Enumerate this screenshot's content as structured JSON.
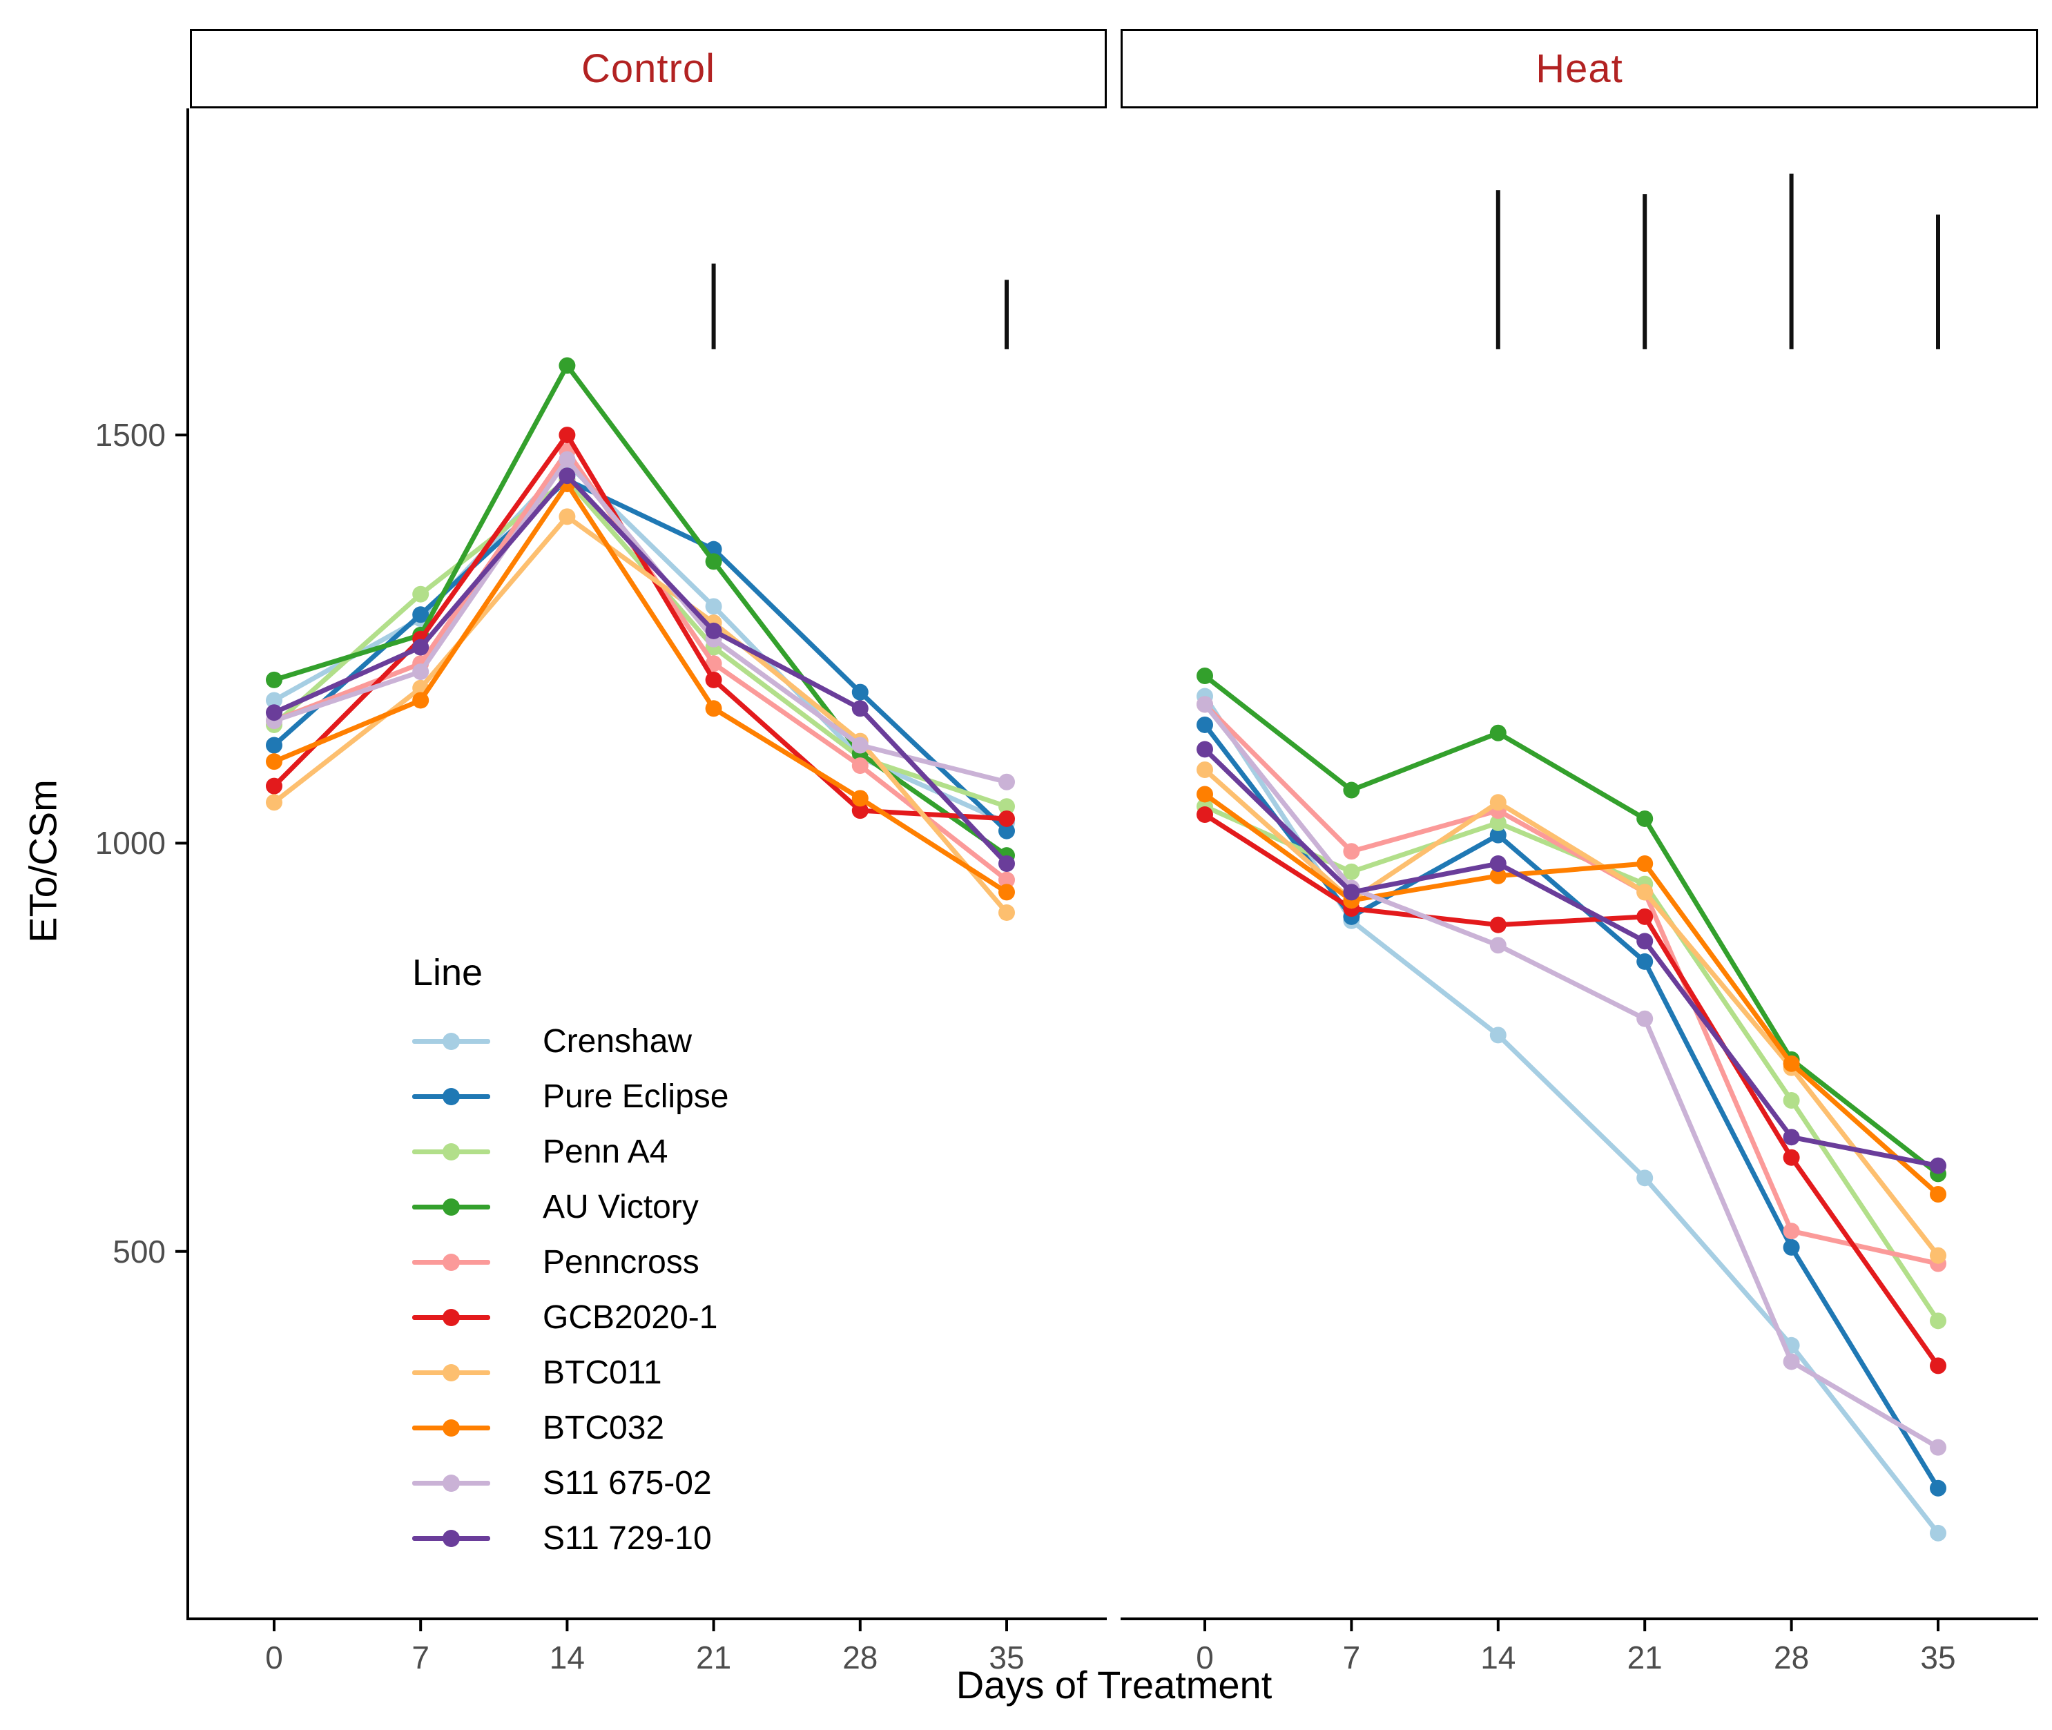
{
  "figure": {
    "facet_labels": [
      "Control",
      "Heat"
    ],
    "strip_text_color": "#B22222",
    "tick_label_color": "#4d4d4d",
    "axis_line_color": "#000000",
    "significance_bar_color": "#101010"
  },
  "legend": {
    "title": "Line"
  },
  "chart_data": {
    "type": "line",
    "title": "",
    "xlabel": "Days of Treatment",
    "ylabel": "ETo/CSm",
    "x": [
      0,
      7,
      14,
      21,
      28,
      35
    ],
    "xticks": [
      0,
      7,
      14,
      21,
      28,
      35
    ],
    "yticks": [
      500,
      1000,
      1500
    ],
    "ylim": [
      50,
      1900
    ],
    "grid": false,
    "legend_position": "inside lower-left of Control panel",
    "facets": [
      {
        "label": "Control",
        "series": [
          {
            "name": "Crenshaw",
            "color": "#A6CEE3",
            "values": [
              1175,
              1275,
              1465,
              1290,
              1105,
              1025
            ]
          },
          {
            "name": "Pure Eclipse",
            "color": "#1F78B4",
            "values": [
              1120,
              1280,
              1445,
              1360,
              1185,
              1015
            ]
          },
          {
            "name": "Penn A4",
            "color": "#B2DF8A",
            "values": [
              1145,
              1305,
              1445,
              1240,
              1105,
              1045
            ]
          },
          {
            "name": "AU Victory",
            "color": "#33A02C",
            "values": [
              1200,
              1255,
              1585,
              1345,
              1110,
              985
            ]
          },
          {
            "name": "Penncross",
            "color": "#FB9A99",
            "values": [
              1150,
              1220,
              1480,
              1220,
              1095,
              955
            ]
          },
          {
            "name": "GCB2020-1",
            "color": "#E31A1C",
            "values": [
              1070,
              1250,
              1500,
              1200,
              1040,
              1030
            ]
          },
          {
            "name": "BTC011",
            "color": "#FDBF6F",
            "values": [
              1050,
              1190,
              1400,
              1270,
              1125,
              915
            ]
          },
          {
            "name": "BTC032",
            "color": "#FF7F00",
            "values": [
              1100,
              1175,
              1440,
              1165,
              1055,
              940
            ]
          },
          {
            "name": "S11 675-02",
            "color": "#CAB2D6",
            "values": [
              1150,
              1210,
              1470,
              1250,
              1120,
              1075
            ]
          },
          {
            "name": "S11 729-10",
            "color": "#6A3D9A",
            "values": [
              1160,
              1240,
              1450,
              1260,
              1165,
              975
            ]
          }
        ],
        "significance_bars": [
          {
            "day": 21,
            "from": 1605,
            "to": 1710
          },
          {
            "day": 35,
            "from": 1605,
            "to": 1690
          }
        ]
      },
      {
        "label": "Heat",
        "series": [
          {
            "name": "Crenshaw",
            "color": "#A6CEE3",
            "values": [
              1180,
              905,
              765,
              590,
              385,
              155
            ]
          },
          {
            "name": "Pure Eclipse",
            "color": "#1F78B4",
            "values": [
              1145,
              910,
              1010,
              855,
              505,
              210
            ]
          },
          {
            "name": "Penn A4",
            "color": "#B2DF8A",
            "values": [
              1045,
              965,
              1025,
              950,
              685,
              415
            ]
          },
          {
            "name": "AU Victory",
            "color": "#33A02C",
            "values": [
              1205,
              1065,
              1135,
              1030,
              735,
              595
            ]
          },
          {
            "name": "Penncross",
            "color": "#FB9A99",
            "values": [
              1170,
              990,
              1040,
              940,
              525,
              485
            ]
          },
          {
            "name": "GCB2020-1",
            "color": "#E31A1C",
            "values": [
              1035,
              920,
              900,
              910,
              615,
              360
            ]
          },
          {
            "name": "BTC011",
            "color": "#FDBF6F",
            "values": [
              1090,
              930,
              1050,
              940,
              725,
              495
            ]
          },
          {
            "name": "BTC032",
            "color": "#FF7F00",
            "values": [
              1060,
              930,
              960,
              975,
              730,
              570
            ]
          },
          {
            "name": "S11 675-02",
            "color": "#CAB2D6",
            "values": [
              1170,
              945,
              875,
              785,
              365,
              260
            ]
          },
          {
            "name": "S11 729-10",
            "color": "#6A3D9A",
            "values": [
              1115,
              940,
              975,
              880,
              640,
              605
            ]
          }
        ],
        "significance_bars": [
          {
            "day": 14,
            "from": 1605,
            "to": 1800
          },
          {
            "day": 21,
            "from": 1605,
            "to": 1795
          },
          {
            "day": 28,
            "from": 1605,
            "to": 1820
          },
          {
            "day": 35,
            "from": 1605,
            "to": 1770
          }
        ]
      }
    ]
  }
}
